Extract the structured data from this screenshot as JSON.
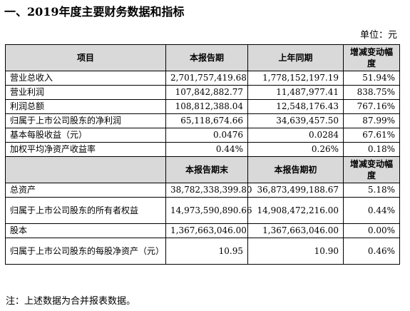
{
  "title": "一、2019年度主要财务数据和指标",
  "unit": "单位：元",
  "header1": [
    "项目",
    "本报告期",
    "上年同期",
    "增减变动幅度"
  ],
  "rows1": [
    [
      "营业总收入",
      "2,701,757,419.68",
      "1,778,152,197.19",
      "51.94%"
    ],
    [
      "营业利润",
      "107,842,882.77",
      "11,487,977.41",
      "838.75%"
    ],
    [
      "利润总额",
      "108,812,388.04",
      "12,548,176.43",
      "767.16%"
    ],
    [
      "归属于上市公司股东的净利润",
      "65,118,674.66",
      "34,639,457.50",
      "87.99%"
    ],
    [
      "基本每股收益（元）",
      "0.0476",
      "0.0284",
      "67.61%"
    ],
    [
      "加权平均净资产收益率",
      "0.44%",
      "0.26%",
      "0.18%"
    ]
  ],
  "header2": [
    "",
    "本报告期末",
    "本报告期初",
    "增减变动幅度"
  ],
  "rows2": [
    [
      "总资产",
      "38,782,338,399.80",
      "36,873,499,188.67",
      "5.18%"
    ],
    [
      "归属于上市公司股东的所有者权益",
      "14,973,590,890.66",
      "14,908,472,216.00",
      "0.44%"
    ],
    [
      "股本",
      "1,367,663,046.00",
      "1,367,663,046.00",
      "0.00%"
    ],
    [
      "归属于上市公司股东的每股净资产（元）",
      "10.95",
      "10.90",
      "0.46%"
    ]
  ],
  "note": "注：上述数据为合并报表数据。"
}
